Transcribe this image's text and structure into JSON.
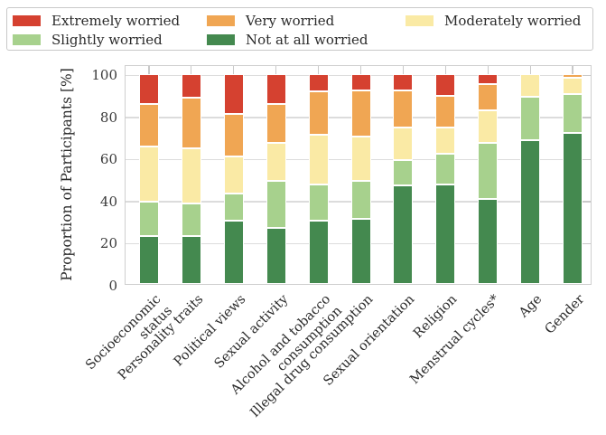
{
  "legend": {
    "items": [
      {
        "label": "Extremely worried",
        "color": "#d54130",
        "icon": "red-swatch"
      },
      {
        "label": "Very worried",
        "color": "#f0a653",
        "icon": "orange-swatch"
      },
      {
        "label": "Moderately worried",
        "color": "#faeaa5",
        "icon": "yellow-swatch"
      },
      {
        "label": "Slightly worried",
        "color": "#a7d18d",
        "icon": "light-green-swatch"
      },
      {
        "label": "Not at all worried",
        "color": "#44894f",
        "icon": "dark-green-swatch"
      }
    ]
  },
  "chart_data": {
    "type": "bar",
    "stacked": true,
    "title": "",
    "xlabel": "",
    "ylabel": "Proportion of Participants [%]",
    "ylim": [
      0,
      100
    ],
    "yticks": [
      0,
      20,
      40,
      60,
      80,
      100
    ],
    "grid": "horizontal",
    "legend_position": "top",
    "categories": [
      "Socioeconomic\nstatus",
      "Personality traits",
      "Political views",
      "Sexual activity",
      "Alcohol and tobacco\nconsumption",
      "Illegal drug consumption",
      "Sexual orientation",
      "Religion",
      "Menstrual cycles*",
      "Age",
      "Gender"
    ],
    "series": [
      {
        "name": "Not at all worried",
        "color": "#44894f",
        "values": [
          23,
          23,
          30,
          26.5,
          30,
          31,
          47,
          47.5,
          40.5,
          68.5,
          72
        ]
      },
      {
        "name": "Slightly worried",
        "color": "#a7d18d",
        "values": [
          16,
          15.5,
          13,
          22.5,
          17.5,
          18,
          12,
          14.5,
          26.5,
          20.5,
          18.5
        ]
      },
      {
        "name": "Moderately worried",
        "color": "#faeaa5",
        "values": [
          26.5,
          26,
          17.5,
          18,
          23.5,
          21,
          15.5,
          12.5,
          15.5,
          11,
          7.5
        ]
      },
      {
        "name": "Very worried",
        "color": "#f0a653",
        "values": [
          20,
          24,
          20.5,
          18.5,
          20.5,
          22,
          17.5,
          15,
          12.5,
          0,
          2
        ]
      },
      {
        "name": "Extremely worried",
        "color": "#d54130",
        "values": [
          14.5,
          11.5,
          19,
          14.5,
          8.5,
          8,
          8,
          10.5,
          5,
          0,
          0
        ]
      }
    ]
  }
}
